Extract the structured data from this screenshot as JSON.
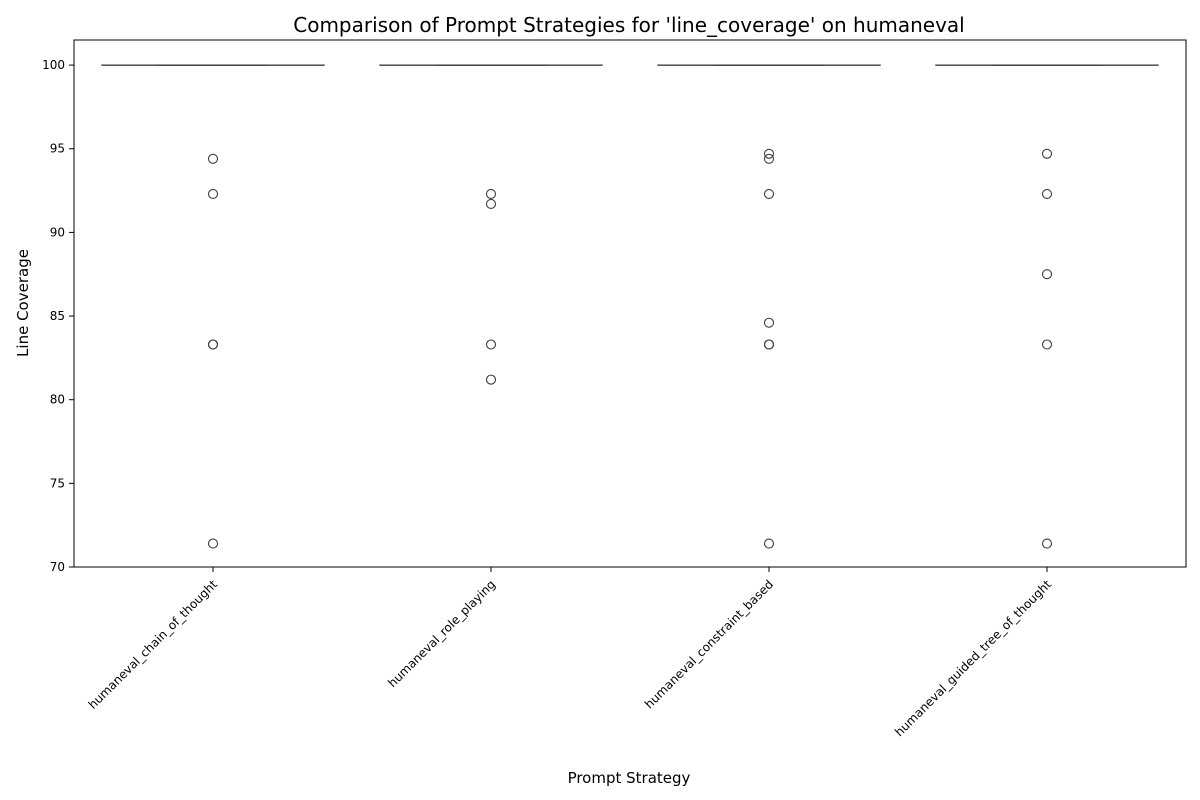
{
  "chart_data": {
    "type": "box",
    "title": "Comparison of Prompt Strategies for 'line_coverage' on humaneval",
    "xlabel": "Prompt Strategy",
    "ylabel": "Line Coverage",
    "ylim": [
      70,
      101.5
    ],
    "yticks": [
      70,
      75,
      80,
      85,
      90,
      95,
      100
    ],
    "grid": false,
    "colors": {
      "box_line": "#3d3d3d",
      "axis": "#000000"
    },
    "categories": [
      "humaneval_chain_of_thought",
      "humaneval_role_playing",
      "humaneval_constraint_based",
      "humaneval_guided_tree_of_thought"
    ],
    "series": [
      {
        "q1": 100,
        "median": 100,
        "q3": 100,
        "whisker_low": 100,
        "whisker_high": 100,
        "outliers": [
          94.4,
          92.3,
          83.3,
          83.3,
          71.4
        ]
      },
      {
        "q1": 100,
        "median": 100,
        "q3": 100,
        "whisker_low": 100,
        "whisker_high": 100,
        "outliers": [
          92.3,
          91.7,
          83.3,
          81.2
        ]
      },
      {
        "q1": 100,
        "median": 100,
        "q3": 100,
        "whisker_low": 100,
        "whisker_high": 100,
        "outliers": [
          94.7,
          94.4,
          92.3,
          84.6,
          83.3,
          83.3,
          71.4
        ]
      },
      {
        "q1": 100,
        "median": 100,
        "q3": 100,
        "whisker_low": 100,
        "whisker_high": 100,
        "outliers": [
          94.7,
          92.3,
          87.5,
          83.3,
          71.4
        ]
      }
    ]
  }
}
